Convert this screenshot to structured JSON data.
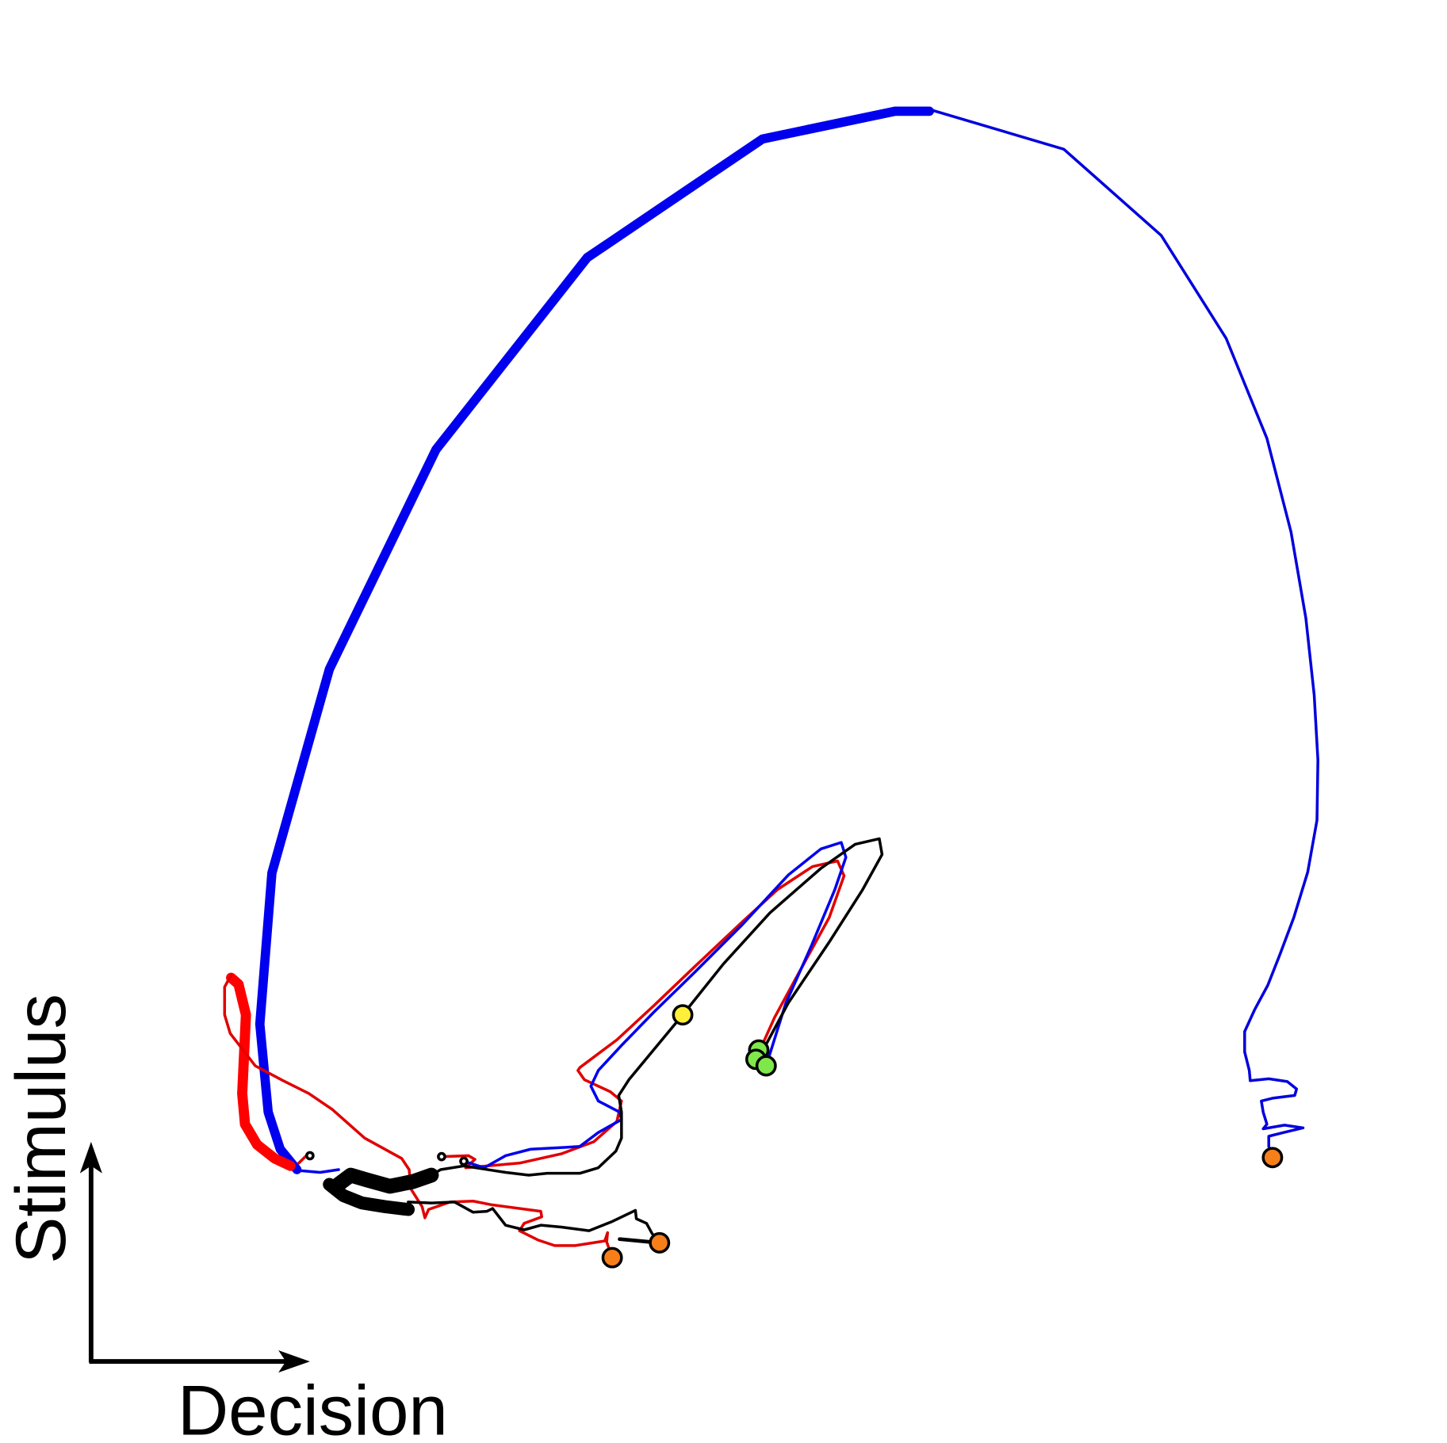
{
  "axes": {
    "x_label": "Decision",
    "y_label": "Stimulus"
  }
}
